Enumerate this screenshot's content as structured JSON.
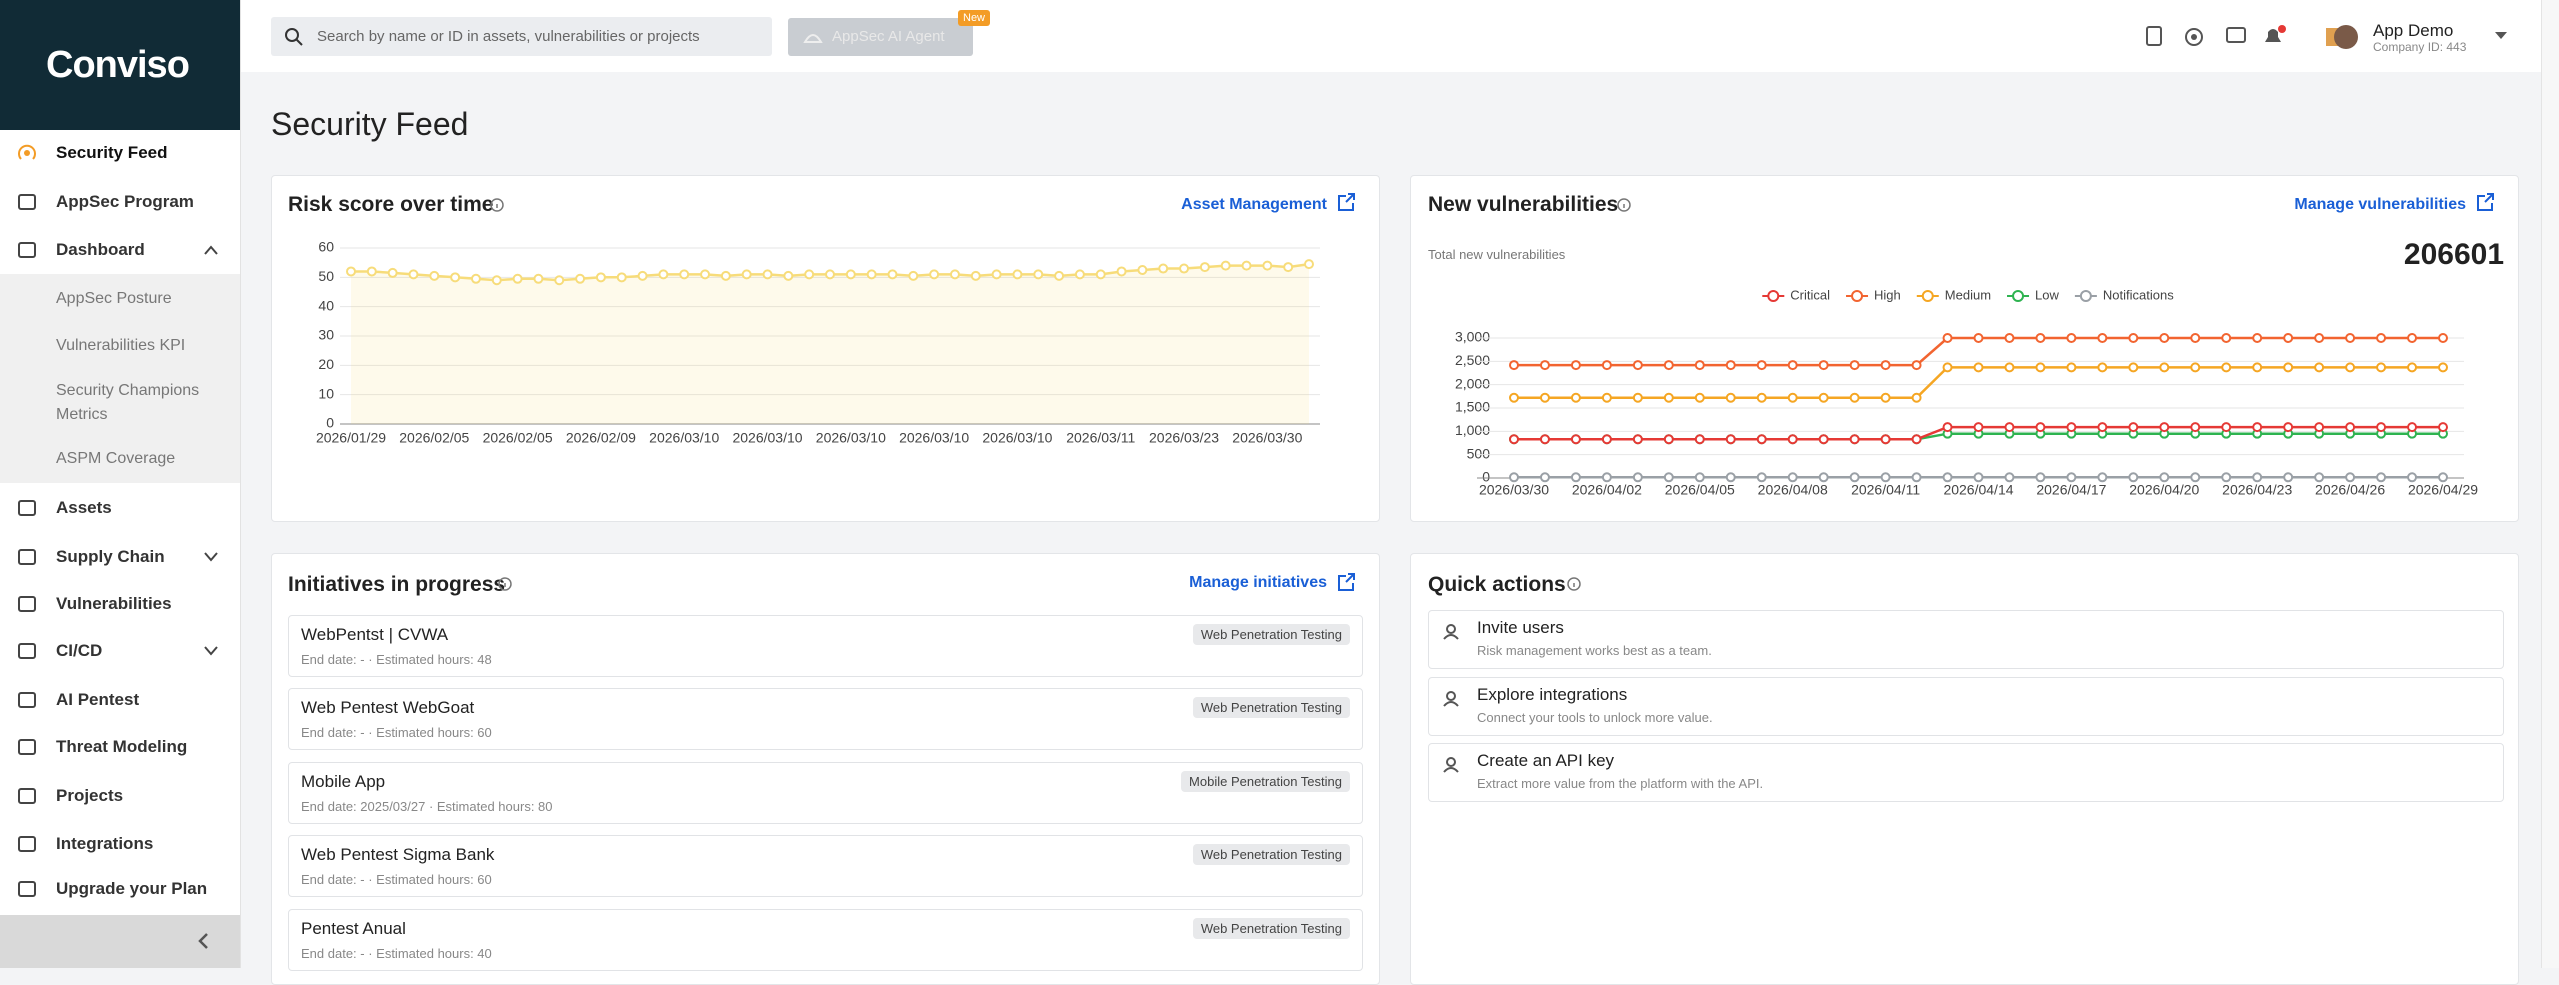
{
  "brand": "Conviso",
  "header": {
    "search_placeholder": "Search by name or ID in assets, vulnerabilities or projects",
    "ai_agent": "AppSec AI Agent",
    "ai_badge": "New",
    "user_name": "App Demo",
    "company_id": "Company ID: 443"
  },
  "sidebar": {
    "items": [
      "Security Feed",
      "AppSec Program",
      "Dashboard",
      "AppSec Posture",
      "Vulnerabilities KPI",
      "Security Champions Metrics",
      "ASPM Coverage",
      "Assets",
      "Supply Chain",
      "Vulnerabilities",
      "CI/CD",
      "AI Pentest",
      "Threat Modeling",
      "Projects",
      "Integrations",
      "Upgrade your Plan"
    ]
  },
  "page_title": "Security Feed",
  "risk_card": {
    "link": "Asset Management"
  },
  "vuln_card": {
    "link": "Manage vulnerabilities",
    "total_label": "Total new vulnerabilities",
    "total": 206601
  },
  "initiatives": {
    "title": "Initiatives in progress",
    "link": "Manage initiatives",
    "items": [
      {
        "name": "WebPentst | CVWA",
        "meta": "End date: - · Estimated hours: 48",
        "tag": "Web Penetration Testing"
      },
      {
        "name": "Web Pentest WebGoat",
        "meta": "End date: - · Estimated hours: 60",
        "tag": "Web Penetration Testing"
      },
      {
        "name": "Mobile App",
        "meta": "End date: 2025/03/27 · Estimated hours: 80",
        "tag": "Mobile Penetration Testing"
      },
      {
        "name": "Web Pentest Sigma Bank",
        "meta": "End date: - · Estimated hours: 60",
        "tag": "Web Penetration Testing"
      },
      {
        "name": "Pentest Anual",
        "meta": "End date: - · Estimated hours: 40",
        "tag": "Web Penetration Testing"
      }
    ]
  },
  "quick_actions": {
    "title": "Quick actions",
    "items": [
      {
        "title": "Invite users",
        "desc": "Risk management works best as a team."
      },
      {
        "title": "Explore integrations",
        "desc": "Connect your tools to unlock more value."
      },
      {
        "title": "Create an API key",
        "desc": "Extract more value from the platform with the API."
      }
    ]
  },
  "chart_data": [
    {
      "type": "line",
      "title": "Risk score over time",
      "area": true,
      "color": "#f7dc7a",
      "grid": true,
      "categories": [
        "2026/01/29",
        null,
        null,
        null,
        "2026/02/05",
        null,
        null,
        null,
        "2026/02/05",
        null,
        null,
        null,
        "2026/02/09",
        null,
        null,
        null,
        "2026/03/10",
        null,
        null,
        null,
        "2026/03/10",
        null,
        null,
        null,
        "2026/03/10",
        null,
        null,
        null,
        "2026/03/10",
        null,
        null,
        null,
        "2026/03/10",
        null,
        null,
        null,
        "2026/03/11",
        null,
        null,
        null,
        "2026/03/23",
        null,
        null,
        null,
        "2026/03/30",
        null,
        null
      ],
      "values": [
        52,
        52,
        51.5,
        51,
        50.5,
        50,
        49.5,
        49,
        49.5,
        49.5,
        49,
        49.5,
        50,
        50,
        50.5,
        51,
        51,
        51,
        50.5,
        51,
        51,
        50.5,
        51,
        51,
        51,
        51,
        51,
        50.5,
        51,
        51,
        50.5,
        51,
        51,
        51,
        50.5,
        51,
        51,
        52,
        52.5,
        53,
        53,
        53.5,
        54,
        54,
        54,
        53.5,
        54.5
      ],
      "ylim": [
        0,
        60
      ],
      "yticks": [
        0,
        10,
        20,
        30,
        40,
        50,
        60
      ]
    },
    {
      "type": "line",
      "title": "New vulnerabilities",
      "grid": true,
      "legend": "top",
      "categories": [
        "2026/03/30",
        null,
        null,
        "2026/04/02",
        null,
        null,
        "2026/04/05",
        null,
        null,
        "2026/04/08",
        null,
        null,
        "2026/04/11",
        null,
        null,
        "2026/04/14",
        null,
        null,
        "2026/04/17",
        null,
        null,
        "2026/04/20",
        null,
        null,
        "2026/04/23",
        null,
        null,
        "2026/04/26",
        null,
        null,
        "2026/04/29"
      ],
      "series": [
        {
          "name": "Critical",
          "color": "#e53935",
          "values": [
            830,
            830,
            830,
            830,
            830,
            830,
            830,
            830,
            830,
            830,
            830,
            830,
            830,
            830,
            1090,
            1090,
            1090,
            1090,
            1090,
            1090,
            1090,
            1090,
            1090,
            1090,
            1090,
            1090,
            1090,
            1090,
            1090,
            1090,
            1090
          ]
        },
        {
          "name": "High",
          "color": "#f26430",
          "values": [
            2420,
            2420,
            2420,
            2420,
            2420,
            2420,
            2420,
            2420,
            2420,
            2420,
            2420,
            2420,
            2420,
            2420,
            3000,
            3000,
            3000,
            3000,
            3000,
            3000,
            3000,
            3000,
            3000,
            3000,
            3000,
            3000,
            3000,
            3000,
            3000,
            3000,
            3000
          ]
        },
        {
          "name": "Medium",
          "color": "#f5a623",
          "values": [
            1720,
            1720,
            1720,
            1720,
            1720,
            1720,
            1720,
            1720,
            1720,
            1720,
            1720,
            1720,
            1720,
            1720,
            2370,
            2370,
            2370,
            2370,
            2370,
            2370,
            2370,
            2370,
            2370,
            2370,
            2370,
            2370,
            2370,
            2370,
            2370,
            2370,
            2370
          ]
        },
        {
          "name": "Low",
          "color": "#2eb350",
          "values": [
            830,
            830,
            830,
            830,
            830,
            830,
            830,
            830,
            830,
            830,
            830,
            830,
            830,
            830,
            950,
            950,
            950,
            950,
            950,
            950,
            950,
            950,
            950,
            950,
            950,
            950,
            950,
            950,
            950,
            950,
            950
          ]
        },
        {
          "name": "Notifications",
          "color": "#9aa0a6",
          "values": [
            15,
            15,
            15,
            15,
            15,
            15,
            15,
            15,
            15,
            15,
            15,
            15,
            15,
            15,
            15,
            15,
            15,
            15,
            15,
            15,
            15,
            15,
            15,
            15,
            15,
            15,
            15,
            15,
            15,
            15,
            15
          ]
        }
      ],
      "ylim": [
        0,
        3000
      ],
      "yticks": [
        0,
        500,
        {
          "value": 1000,
          "label": "1,000"
        },
        {
          "value": 1500,
          "label": "1,500"
        },
        {
          "value": 2000,
          "label": "2,000"
        },
        {
          "value": 2500,
          "label": "2,500"
        },
        {
          "value": 3000,
          "label": "3,000"
        }
      ]
    }
  ]
}
